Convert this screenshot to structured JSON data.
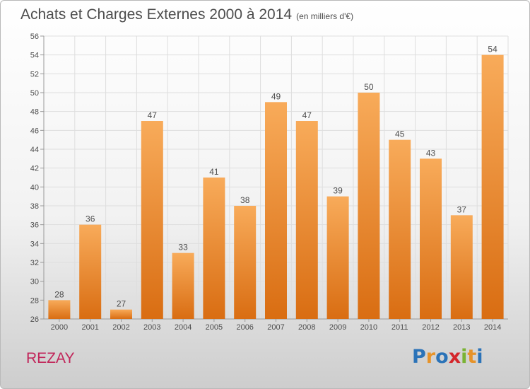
{
  "title": "Achats et Charges Externes 2000 à 2014",
  "subtitle": "(en milliers d'€)",
  "place": "REZAY",
  "logo": {
    "letters": [
      "P",
      "r",
      "o",
      "x",
      "i",
      "t",
      "i"
    ],
    "colors": [
      "#2b73b8",
      "#e6932a",
      "#2b73b8",
      "#d4262b",
      "#7ab334",
      "#e6932a",
      "#2b73b8"
    ]
  },
  "colors": {
    "bar_light": "#f8ab5a",
    "bar_dark": "#d96d12",
    "grid": "#dedede",
    "axis_text": "#4d4d4d",
    "title": "#4d4d4d",
    "place": "#c1265a"
  },
  "chart_data": {
    "type": "bar",
    "title": "Achats et Charges Externes 2000 à 2014",
    "subtitle": "(en milliers d'€)",
    "xlabel": "",
    "ylabel": "",
    "categories": [
      "2000",
      "2001",
      "2002",
      "2003",
      "2004",
      "2005",
      "2006",
      "2007",
      "2008",
      "2009",
      "2010",
      "2011",
      "2012",
      "2013",
      "2014"
    ],
    "values": [
      28,
      36,
      27,
      47,
      33,
      41,
      38,
      49,
      47,
      39,
      50,
      45,
      43,
      37,
      54
    ],
    "ylim": [
      26,
      56
    ],
    "yticks": [
      26,
      28,
      30,
      32,
      34,
      36,
      38,
      40,
      42,
      44,
      46,
      48,
      50,
      52,
      54,
      56
    ],
    "grid": true,
    "data_labels": true
  }
}
